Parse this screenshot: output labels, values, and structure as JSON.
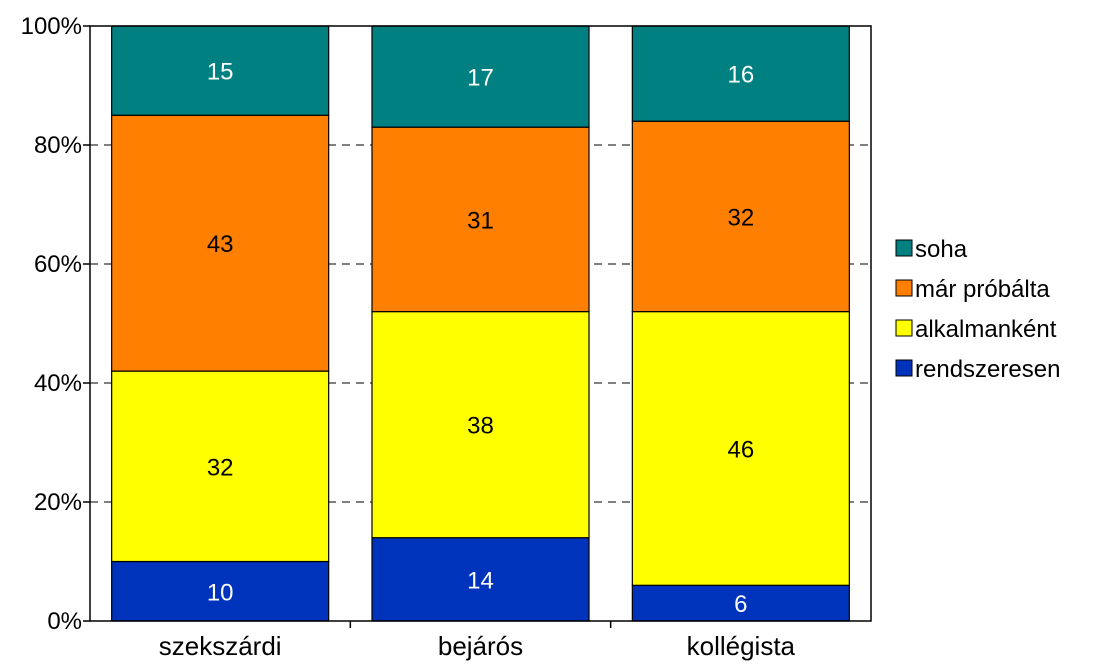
{
  "chart_data": {
    "type": "bar",
    "stacked": true,
    "percent": true,
    "categories": [
      "szekszárdi",
      "bejárós",
      "kollégista"
    ],
    "series": [
      {
        "name": "rendszeresen",
        "color": "#0033bb",
        "label_color": "#ffffff",
        "values": [
          10,
          14,
          6
        ]
      },
      {
        "name": "alkalmanként",
        "color": "#ffff00",
        "label_color": "#000000",
        "values": [
          32,
          38,
          46
        ]
      },
      {
        "name": "már próbálta",
        "color": "#ff7f00",
        "label_color": "#000000",
        "values": [
          43,
          31,
          32
        ]
      },
      {
        "name": "soha",
        "color": "#008080",
        "label_color": "#ffffff",
        "values": [
          15,
          17,
          16
        ]
      }
    ],
    "ylim": [
      0,
      100
    ],
    "yticks": [
      "0%",
      "20%",
      "40%",
      "60%",
      "80%",
      "100%"
    ],
    "grid": true,
    "legend": {
      "position": "right",
      "order": [
        "soha",
        "már próbálta",
        "alkalmanként",
        "rendszeresen"
      ]
    }
  }
}
